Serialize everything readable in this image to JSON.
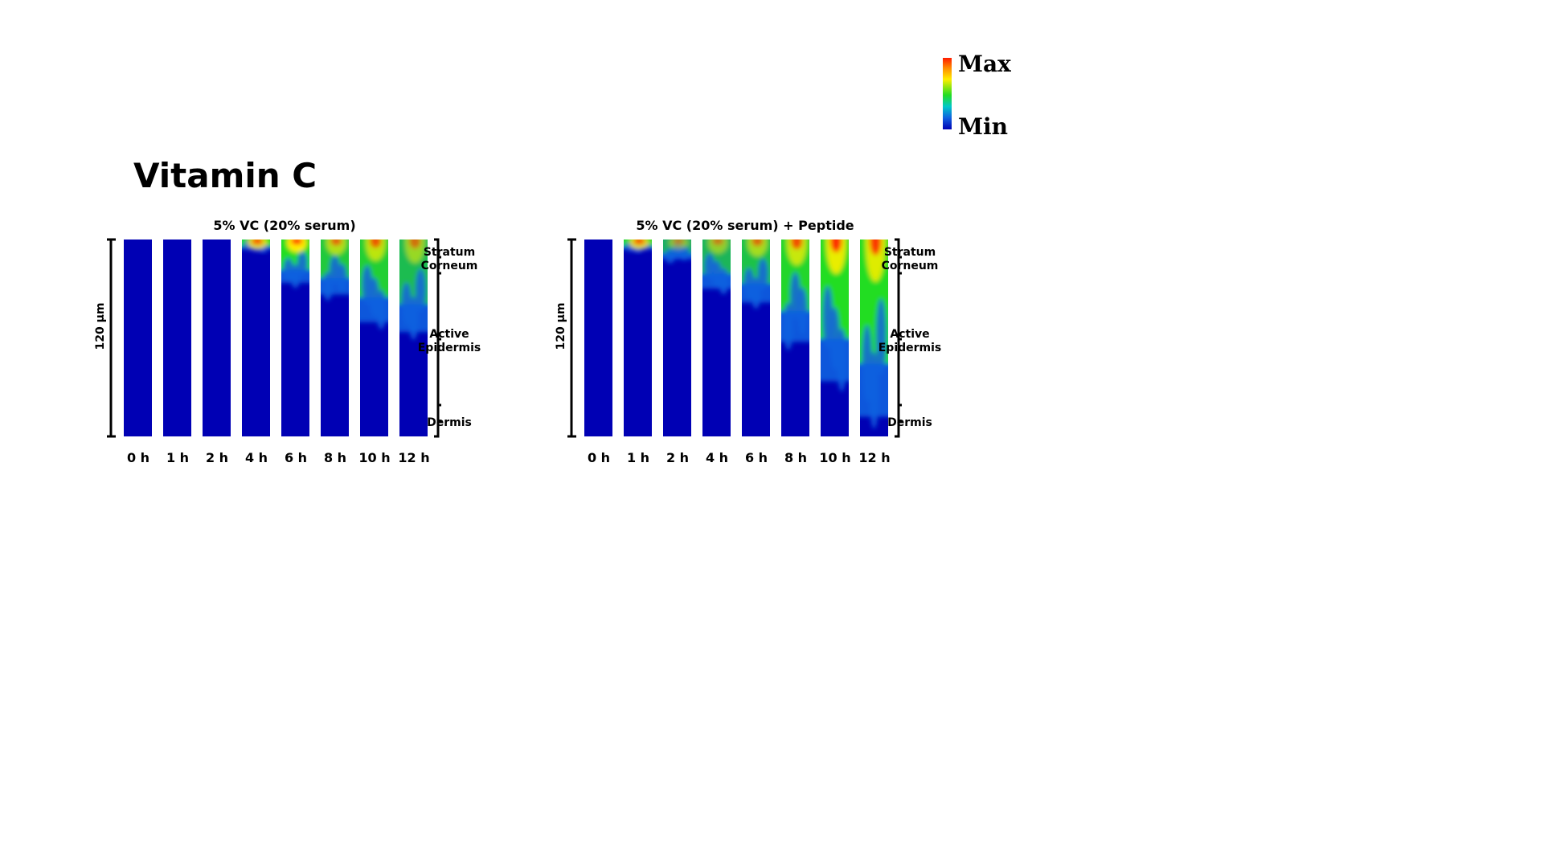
{
  "title": "Vitamin C",
  "legend": {
    "max_label": "Max",
    "min_label": "Min"
  },
  "chart_data": [
    {
      "type": "heatmap",
      "title": "5% VC (20% serum)",
      "ylabel": "120 µm",
      "columns": [
        "0 h",
        "1 h",
        "2 h",
        "4 h",
        "6 h",
        "8 h",
        "10 h",
        "12 h"
      ],
      "layers": [
        "Stratum Corneum",
        "Active Epidermis",
        "Dermis"
      ],
      "penetration_depth_fraction": [
        0,
        0,
        0,
        0.05,
        0.22,
        0.28,
        0.42,
        0.47
      ],
      "peak_intensity_fraction": [
        0,
        0,
        0,
        0.85,
        1.0,
        0.65,
        0.7,
        0.55
      ]
    },
    {
      "type": "heatmap",
      "title": "5% VC (20% serum) + Peptide",
      "ylabel": "120 µm",
      "columns": [
        "0 h",
        "1 h",
        "2 h",
        "4 h",
        "6 h",
        "8 h",
        "10 h",
        "12 h"
      ],
      "layers": [
        "Stratum Corneum",
        "Active Epidermis",
        "Dermis"
      ],
      "penetration_depth_fraction": [
        0,
        0.05,
        0.1,
        0.25,
        0.32,
        0.52,
        0.72,
        0.9
      ],
      "peak_intensity_fraction": [
        0,
        0.85,
        0.45,
        0.5,
        0.6,
        0.75,
        0.9,
        0.85
      ]
    }
  ],
  "colors": {
    "background": "#0000b4",
    "low": "#1060e0",
    "mid": "#22dd22",
    "high": "#ffee00",
    "max": "#ff1a00"
  }
}
